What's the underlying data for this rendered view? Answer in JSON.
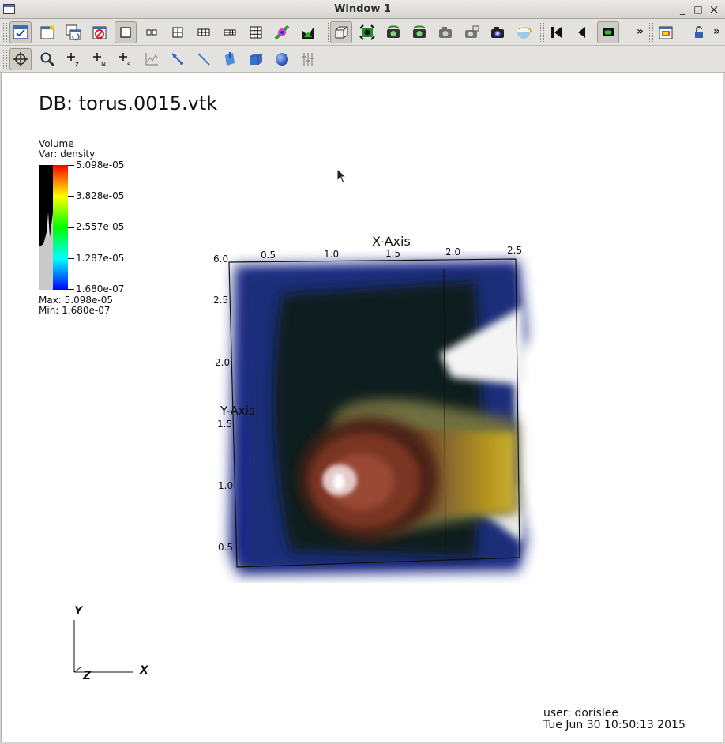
{
  "window": {
    "title": "Window 1",
    "minimize_glyph": "_",
    "maximize_glyph": "□",
    "close_glyph": "×"
  },
  "toolbar": {
    "row1_icons": [
      "active-window-icon",
      "new-window-icon",
      "clone-window-icon",
      "delete-window-icon",
      "layout-1x1-icon",
      "layout-1x2-icon",
      "layout-2x2-icon",
      "layout-2x3-icon",
      "layout-2x4-icon",
      "layout-3x3-icon",
      "lock-view-icon",
      "lock-time-icon",
      "perspective-view-icon",
      "recenter-view-icon",
      "undo-view-icon",
      "redo-view-icon",
      "save-view-icon",
      "choose-view-icon",
      "camera-icon",
      "camera-2-icon",
      "camera-3-icon",
      "spin-icon",
      "reverse-step-icon",
      "reverse-play-icon",
      "stop-icon",
      "copy-view-icon",
      "lock-tools-icon"
    ],
    "row2_icons": [
      "navigate-icon",
      "zoom-icon",
      "zone-pick-icon",
      "node-pick-icon",
      "spreadsheet-pick-icon",
      "lineout-icon",
      "point-tool-icon",
      "line-tool-icon",
      "plane-tool-icon",
      "box-tool-icon",
      "sphere-tool-icon",
      "axis-restrict-icon"
    ],
    "overflow_glyph": "»"
  },
  "plot": {
    "db_label": "DB: torus.0015.vtk",
    "legend": {
      "plot_type": "Volume",
      "var": "Var: density",
      "tick_labels": [
        "5.098e-05",
        "3.828e-05",
        "2.557e-05",
        "1.287e-05",
        "1.680e-07"
      ],
      "max": "Max:  5.098e-05",
      "min": "Min:  1.680e-07",
      "colors": [
        "#ff0000",
        "#ffff00",
        "#00ff00",
        "#00ffff",
        "#0000ff"
      ]
    },
    "axes": {
      "x_title": "X-Axis",
      "y_title": "Y-Axis",
      "x_ticks": [
        "0.5",
        "1.0",
        "1.5",
        "2.0",
        "2.5"
      ],
      "y_ticks": [
        "6.0",
        "2.5",
        "2.0",
        "1.5",
        "1.0",
        "0.5"
      ]
    },
    "triad": {
      "x": "X",
      "y": "Y",
      "z": "Z"
    },
    "user": "user: dorislee",
    "timestamp": "Tue Jun 30 10:50:13 2015"
  }
}
